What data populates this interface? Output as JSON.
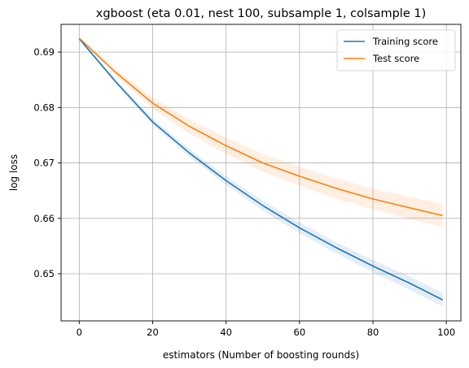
{
  "chart_data": {
    "type": "line",
    "title": "xgboost (eta 0.01, nest 100, subsample 1, colsample 1)",
    "xlabel": "estimators (Number of boosting rounds)",
    "ylabel": "log loss",
    "xlim": [
      -4.95,
      103.95
    ],
    "ylim": [
      0.6415,
      0.695
    ],
    "xticks": [
      0,
      20,
      40,
      60,
      80,
      100
    ],
    "xtick_labels": [
      "0",
      "20",
      "40",
      "60",
      "80",
      "100"
    ],
    "yticks": [
      0.65,
      0.66,
      0.67,
      0.68,
      0.69
    ],
    "ytick_labels": [
      "0.65",
      "0.66",
      "0.67",
      "0.68",
      "0.69"
    ],
    "grid": true,
    "legend_position": "top-right",
    "series": [
      {
        "name": "Training score",
        "color": "#1f77b4",
        "x": [
          0,
          10,
          20,
          30,
          40,
          50,
          60,
          70,
          80,
          90,
          99
        ],
        "y": [
          0.6924,
          0.6846,
          0.6774,
          0.6718,
          0.6668,
          0.6623,
          0.6583,
          0.6547,
          0.6514,
          0.6483,
          0.6453
        ],
        "band": [
          0.0001,
          0.0004,
          0.0006,
          0.0007,
          0.0008,
          0.0009,
          0.001,
          0.001,
          0.0011,
          0.0012,
          0.0012
        ]
      },
      {
        "name": "Test score",
        "color": "#ff7f0e",
        "x": [
          0,
          10,
          20,
          30,
          40,
          50,
          60,
          70,
          80,
          90,
          99
        ],
        "y": [
          0.6925,
          0.6863,
          0.6808,
          0.6766,
          0.6731,
          0.67,
          0.6676,
          0.6654,
          0.6635,
          0.6619,
          0.6605
        ],
        "band": [
          0.0001,
          0.0006,
          0.001,
          0.0013,
          0.0015,
          0.0016,
          0.0017,
          0.0018,
          0.0019,
          0.002,
          0.0021
        ]
      }
    ]
  }
}
